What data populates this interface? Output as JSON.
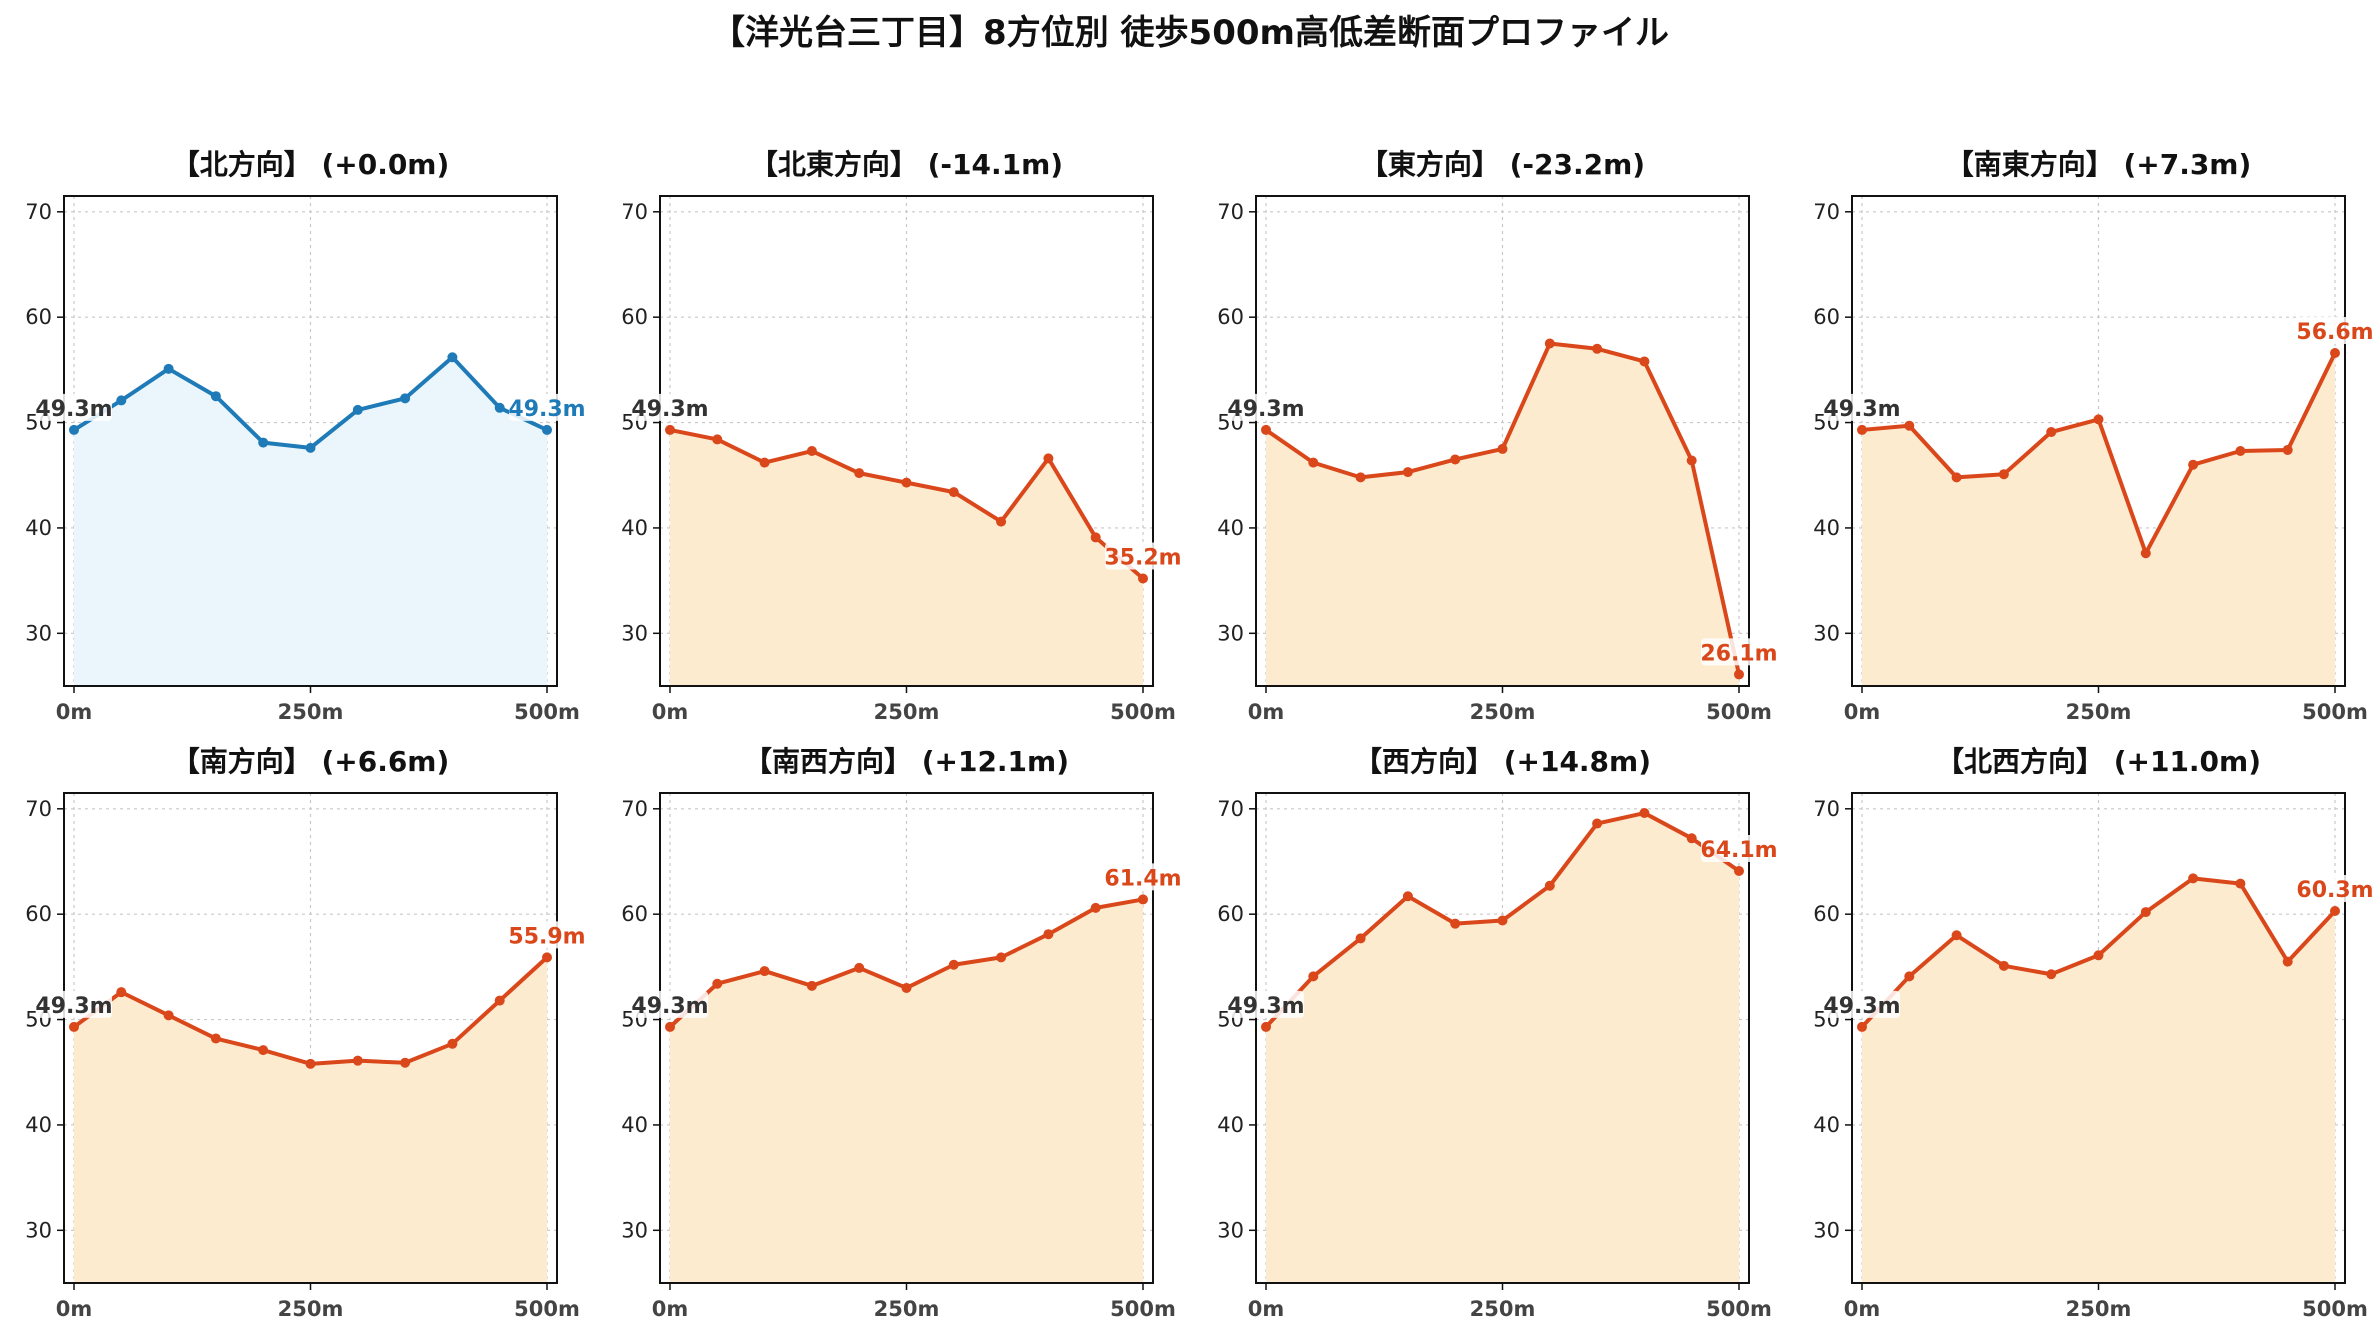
{
  "title": "【洋光台三丁目】8方位別 徒歩500m高低差断面プロファイル",
  "colors": {
    "flat_line": "#1f7ab8",
    "flat_fill": "#eaf6fb",
    "line": "#d9471a",
    "fill": "#fdebd0",
    "start_label": "#333333",
    "grid": "#c8c8c8"
  },
  "chart_data": [
    {
      "type": "area",
      "title": "【北方向】 (+0.0m)",
      "x": [
        0,
        50,
        100,
        150,
        200,
        250,
        300,
        350,
        400,
        450,
        500
      ],
      "values": [
        49.3,
        52.1,
        55.1,
        52.5,
        48.1,
        47.6,
        51.2,
        52.3,
        56.2,
        51.4,
        49.3
      ],
      "xticks": [
        "0m",
        "250m",
        "500m"
      ],
      "yticks": [
        "30",
        "40",
        "50",
        "60",
        "70"
      ],
      "ylim": [
        25,
        71.5
      ],
      "start_label": "49.3m",
      "end_label": "49.3m",
      "grid": true
    },
    {
      "type": "area",
      "title": "【北東方向】 (-14.1m)",
      "x": [
        0,
        50,
        100,
        150,
        200,
        250,
        300,
        350,
        400,
        450,
        500
      ],
      "values": [
        49.3,
        48.4,
        46.2,
        47.3,
        45.2,
        44.3,
        43.4,
        40.6,
        46.6,
        39.1,
        35.2
      ],
      "xticks": [
        "0m",
        "250m",
        "500m"
      ],
      "yticks": [
        "30",
        "40",
        "50",
        "60",
        "70"
      ],
      "ylim": [
        25,
        71.5
      ],
      "start_label": "49.3m",
      "end_label": "35.2m",
      "grid": true
    },
    {
      "type": "area",
      "title": "【東方向】 (-23.2m)",
      "x": [
        0,
        50,
        100,
        150,
        200,
        250,
        300,
        350,
        400,
        450,
        500
      ],
      "values": [
        49.3,
        46.2,
        44.8,
        45.3,
        46.5,
        47.5,
        57.5,
        57.0,
        55.8,
        46.4,
        26.1
      ],
      "xticks": [
        "0m",
        "250m",
        "500m"
      ],
      "yticks": [
        "30",
        "40",
        "50",
        "60",
        "70"
      ],
      "ylim": [
        25,
        71.5
      ],
      "start_label": "49.3m",
      "end_label": "26.1m",
      "grid": true
    },
    {
      "type": "area",
      "title": "【南東方向】 (+7.3m)",
      "x": [
        0,
        50,
        100,
        150,
        200,
        250,
        300,
        350,
        400,
        450,
        500
      ],
      "values": [
        49.3,
        49.7,
        44.8,
        45.1,
        49.1,
        50.3,
        37.6,
        46.0,
        47.3,
        47.4,
        56.6
      ],
      "xticks": [
        "0m",
        "250m",
        "500m"
      ],
      "yticks": [
        "30",
        "40",
        "50",
        "60",
        "70"
      ],
      "ylim": [
        25,
        71.5
      ],
      "start_label": "49.3m",
      "end_label": "56.6m",
      "grid": true
    },
    {
      "type": "area",
      "title": "【南方向】 (+6.6m)",
      "x": [
        0,
        50,
        100,
        150,
        200,
        250,
        300,
        350,
        400,
        450,
        500
      ],
      "values": [
        49.3,
        52.6,
        50.4,
        48.2,
        47.1,
        45.8,
        46.1,
        45.9,
        47.7,
        51.8,
        55.9
      ],
      "xticks": [
        "0m",
        "250m",
        "500m"
      ],
      "yticks": [
        "30",
        "40",
        "50",
        "60",
        "70"
      ],
      "ylim": [
        25,
        71.5
      ],
      "start_label": "49.3m",
      "end_label": "55.9m",
      "grid": true
    },
    {
      "type": "area",
      "title": "【南西方向】 (+12.1m)",
      "x": [
        0,
        50,
        100,
        150,
        200,
        250,
        300,
        350,
        400,
        450,
        500
      ],
      "values": [
        49.3,
        53.4,
        54.6,
        53.2,
        54.9,
        53.0,
        55.2,
        55.9,
        58.1,
        60.6,
        61.4
      ],
      "xticks": [
        "0m",
        "250m",
        "500m"
      ],
      "yticks": [
        "30",
        "40",
        "50",
        "60",
        "70"
      ],
      "ylim": [
        25,
        71.5
      ],
      "start_label": "49.3m",
      "end_label": "61.4m",
      "grid": true
    },
    {
      "type": "area",
      "title": "【西方向】 (+14.8m)",
      "x": [
        0,
        50,
        100,
        150,
        200,
        250,
        300,
        350,
        400,
        450,
        500
      ],
      "values": [
        49.3,
        54.1,
        57.7,
        61.7,
        59.1,
        59.4,
        62.7,
        68.6,
        69.6,
        67.2,
        64.1
      ],
      "xticks": [
        "0m",
        "250m",
        "500m"
      ],
      "yticks": [
        "30",
        "40",
        "50",
        "60",
        "70"
      ],
      "ylim": [
        25,
        71.5
      ],
      "start_label": "49.3m",
      "end_label": "64.1m",
      "grid": true
    },
    {
      "type": "area",
      "title": "【北西方向】 (+11.0m)",
      "x": [
        0,
        50,
        100,
        150,
        200,
        250,
        300,
        350,
        400,
        450,
        500
      ],
      "values": [
        49.3,
        54.1,
        58.0,
        55.1,
        54.3,
        56.1,
        60.2,
        63.4,
        62.9,
        55.5,
        60.3
      ],
      "xticks": [
        "0m",
        "250m",
        "500m"
      ],
      "yticks": [
        "30",
        "40",
        "50",
        "60",
        "70"
      ],
      "ylim": [
        25,
        71.5
      ],
      "start_label": "49.3m",
      "end_label": "60.3m",
      "grid": true
    }
  ]
}
